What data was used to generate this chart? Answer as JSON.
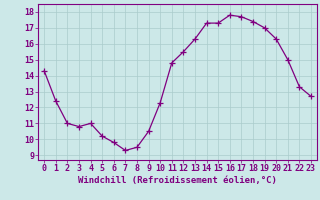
{
  "x": [
    0,
    1,
    2,
    3,
    4,
    5,
    6,
    7,
    8,
    9,
    10,
    11,
    12,
    13,
    14,
    15,
    16,
    17,
    18,
    19,
    20,
    21,
    22,
    23
  ],
  "y": [
    14.3,
    12.4,
    11.0,
    10.8,
    11.0,
    10.2,
    9.8,
    9.3,
    9.5,
    10.5,
    12.3,
    14.8,
    15.5,
    16.3,
    17.3,
    17.3,
    17.8,
    17.7,
    17.4,
    17.0,
    16.3,
    15.0,
    13.3,
    12.7
  ],
  "line_color": "#800080",
  "marker": "+",
  "markersize": 4,
  "linewidth": 0.9,
  "bg_color": "#cce8e8",
  "grid_color": "#aacccc",
  "xlabel": "Windchill (Refroidissement éolien,°C)",
  "ylabel": "",
  "yticks": [
    9,
    10,
    11,
    12,
    13,
    14,
    15,
    16,
    17,
    18
  ],
  "xticks": [
    0,
    1,
    2,
    3,
    4,
    5,
    6,
    7,
    8,
    9,
    10,
    11,
    12,
    13,
    14,
    15,
    16,
    17,
    18,
    19,
    20,
    21,
    22,
    23
  ],
  "ylim": [
    8.7,
    18.5
  ],
  "xlim": [
    -0.5,
    23.5
  ],
  "xlabel_fontsize": 6.5,
  "tick_fontsize": 6.0,
  "tick_color": "#800080",
  "xlabel_color": "#800080",
  "spine_color": "#800080"
}
